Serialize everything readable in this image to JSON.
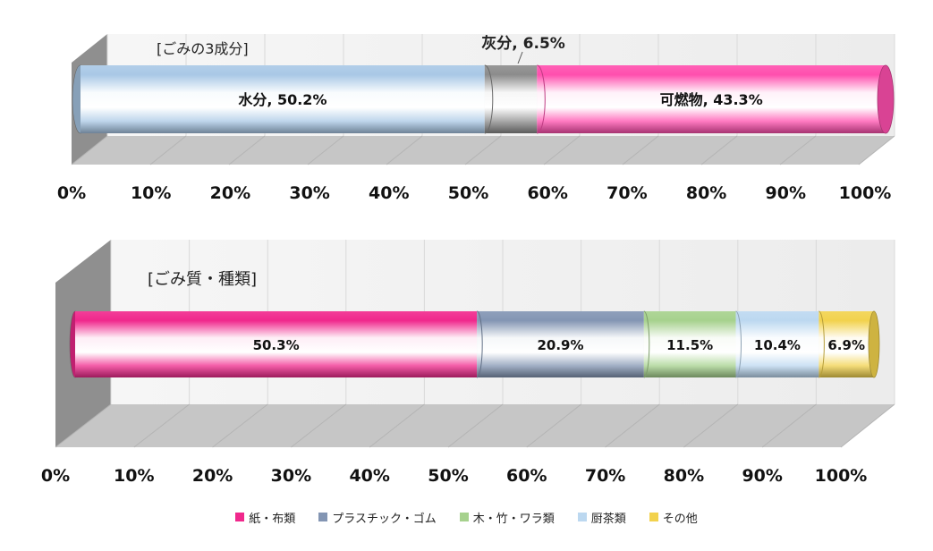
{
  "chart_data": [
    {
      "type": "bar",
      "orientation": "horizontal",
      "stacked": "100%",
      "title": "[ごみの3成分]",
      "xlim": [
        0,
        100
      ],
      "ticks": [
        "0%",
        "10%",
        "20%",
        "30%",
        "40%",
        "50%",
        "60%",
        "70%",
        "80%",
        "90%",
        "100%"
      ],
      "grid": true,
      "series": [
        {
          "name": "水分",
          "value": 50.2,
          "color": "#a9c8e6",
          "label": "水分, 50.2%"
        },
        {
          "name": "灰分",
          "value": 6.5,
          "color": "#8c8c8c",
          "label": "灰分, 6.5%"
        },
        {
          "name": "可燃物",
          "value": 43.3,
          "color": "#ff4fae",
          "label": "可燃物, 43.3%"
        }
      ]
    },
    {
      "type": "bar",
      "orientation": "horizontal",
      "stacked": "100%",
      "title": "[ごみ質・種類]",
      "xlim": [
        0,
        100
      ],
      "ticks": [
        "0%",
        "10%",
        "20%",
        "30%",
        "40%",
        "50%",
        "60%",
        "70%",
        "80%",
        "90%",
        "100%"
      ],
      "grid": true,
      "legend": "bottom",
      "series": [
        {
          "name": "紙・布類",
          "value": 50.3,
          "color": "#f0288c",
          "label": "50.3%"
        },
        {
          "name": "プラスチック・ゴム",
          "value": 20.9,
          "color": "#8395b3",
          "label": "20.9%"
        },
        {
          "name": "木・竹・ワラ類",
          "value": 11.5,
          "color": "#a6d18d",
          "label": "11.5%"
        },
        {
          "name": "厨茶類",
          "value": 10.4,
          "color": "#bcd8f0",
          "label": "10.4%"
        },
        {
          "name": "その他",
          "value": 6.9,
          "color": "#f2d24d",
          "label": "6.9%"
        }
      ]
    }
  ]
}
